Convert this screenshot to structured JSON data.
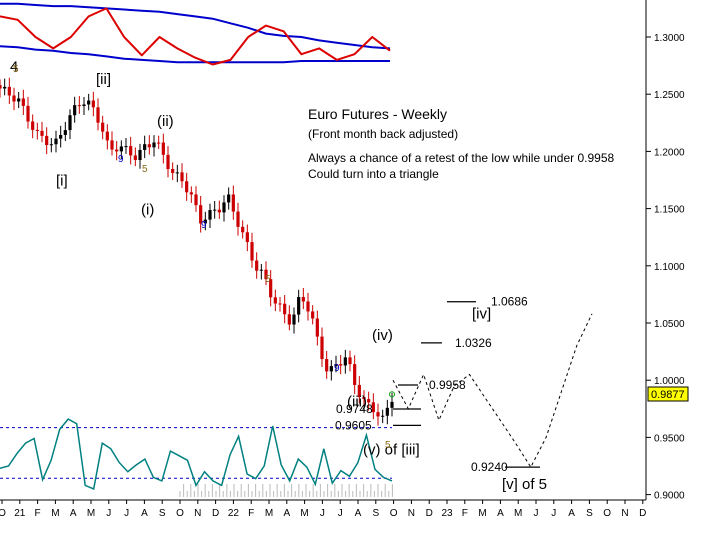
{
  "chart_data": {
    "type": "candlestick",
    "title": "Euro Futures - Weekly",
    "subtitle": "(Front month back adjusted)",
    "notes": [
      "Always a chance of a retest of the low while under 0.9958",
      "Could turn into a triangle"
    ],
    "ylim": [
      0.895,
      1.335
    ],
    "y_ticks": [
      "1.3000",
      "1.2500",
      "1.2000",
      "1.1500",
      "1.1000",
      "1.0500",
      "1.0000",
      "0.9500",
      "0.9000"
    ],
    "y_tick_values": [
      1.3,
      1.25,
      1.2,
      1.15,
      1.1,
      1.05,
      1.0,
      0.95,
      0.9
    ],
    "x_ticks": [
      "O",
      "21",
      "F",
      "M",
      "A",
      "M",
      "J",
      "J",
      "A",
      "S",
      "O",
      "N",
      "D",
      "22",
      "F",
      "M",
      "A",
      "M",
      "J",
      "J",
      "A",
      "S",
      "O",
      "N",
      "D",
      "23",
      "F",
      "M",
      "A",
      "M",
      "J",
      "J",
      "A",
      "S",
      "O",
      "N",
      "D"
    ],
    "last_price": {
      "label": "0.9877",
      "value": 0.9877,
      "color": "#ffff00"
    },
    "price_path": [
      1.255,
      1.25,
      1.245,
      1.23,
      1.215,
      1.21,
      1.205,
      1.22,
      1.235,
      1.245,
      1.24,
      1.225,
      1.2,
      1.205,
      1.2,
      1.195,
      1.205,
      1.21,
      1.195,
      1.18,
      1.175,
      1.16,
      1.14,
      1.145,
      1.15,
      1.16,
      1.14,
      1.12,
      1.1,
      1.09,
      1.07,
      1.06,
      1.05,
      1.075,
      1.06,
      1.03,
      1.005,
      1.015,
      1.02,
      0.995,
      0.98,
      0.975,
      0.965,
      0.985
    ],
    "levels": [
      {
        "label": "1.0686",
        "value": 1.0686
      },
      {
        "label": "1.0326",
        "value": 1.0326
      },
      {
        "label": "0.9958",
        "value": 0.9958
      },
      {
        "label": "0.9748",
        "value": 0.9748
      },
      {
        "label": "0.9605",
        "value": 0.9605
      },
      {
        "label": "0.9240",
        "value": 0.924
      }
    ],
    "projection": [
      1.0,
      0.975,
      1.005,
      0.965,
      0.995,
      1.005,
      0.985,
      0.965,
      0.945,
      0.924,
      0.95,
      0.99,
      1.03,
      1.058
    ],
    "wave_labels": [
      {
        "text": "4",
        "price": 1.27
      },
      {
        "text": "[ii]",
        "price": 1.259
      },
      {
        "text": "(ii)",
        "price": 1.222
      },
      {
        "text": "[i]",
        "price": 1.17
      },
      {
        "text": "(i)",
        "price": 1.145
      },
      {
        "text": "(iv)",
        "price": 1.035
      },
      {
        "text": "(iii)",
        "price": 0.977
      },
      {
        "text": "(v) of [iii]",
        "price": 0.935
      },
      {
        "text": "[iv]",
        "price": 1.054
      },
      {
        "text": "[v] of 5",
        "price": 0.905
      }
    ],
    "minor_labels": [
      {
        "text": "5",
        "color": "#8b6914"
      },
      {
        "text": "9",
        "color": "#0000cc"
      },
      {
        "text": "5",
        "color": "#8b6914"
      },
      {
        "text": "9",
        "color": "#0000cc"
      },
      {
        "text": "5",
        "color": "#8b6914"
      },
      {
        "text": "9",
        "color": "#0000cc"
      },
      {
        "text": "5",
        "color": "#8b6914"
      }
    ],
    "osc_top": {
      "upper_band": [
        1.329,
        1.329,
        1.328,
        1.327,
        1.327,
        1.326,
        1.325,
        1.324,
        1.323,
        1.322,
        1.32,
        1.318,
        1.316,
        1.312,
        1.308,
        1.303,
        1.301,
        1.3,
        1.297,
        1.295,
        1.293,
        1.291,
        1.29
      ],
      "lower_band": [
        1.292,
        1.291,
        1.289,
        1.288,
        1.286,
        1.285,
        1.283,
        1.281,
        1.28,
        1.279,
        1.278,
        1.278,
        1.278,
        1.278,
        1.278,
        1.278,
        1.278,
        1.279,
        1.279,
        1.279,
        1.279,
        1.279,
        1.279
      ],
      "oscillator": [
        1.318,
        1.315,
        1.3,
        1.29,
        1.3,
        1.318,
        1.325,
        1.3,
        1.284,
        1.3,
        1.29,
        1.282,
        1.276,
        1.28,
        1.3,
        1.31,
        1.305,
        1.285,
        1.29,
        1.28,
        1.285,
        1.3,
        1.288
      ],
      "colors": {
        "bands": "#0000cc",
        "oscillator": "#dd0000"
      }
    },
    "osc_bottom": {
      "levels": [
        0.9585,
        0.9143
      ],
      "line": [
        0.923,
        0.925,
        0.936,
        0.945,
        0.949,
        0.913,
        0.93,
        0.957,
        0.966,
        0.962,
        0.908,
        0.905,
        0.945,
        0.94,
        0.928,
        0.92,
        0.926,
        0.931,
        0.915,
        0.912,
        0.938,
        0.934,
        0.93,
        0.908,
        0.92,
        0.912,
        0.908,
        0.935,
        0.951,
        0.918,
        0.914,
        0.925,
        0.96,
        0.926,
        0.912,
        0.931,
        0.924,
        0.909,
        0.94,
        0.91,
        0.921,
        0.916,
        0.928,
        0.952,
        0.922,
        0.915,
        0.912
      ],
      "color": "#008080"
    },
    "colors": {
      "up": "#000000",
      "down": "#cc0000",
      "axis": "#000000",
      "level_dash": "#0000cc"
    },
    "grid": false
  }
}
